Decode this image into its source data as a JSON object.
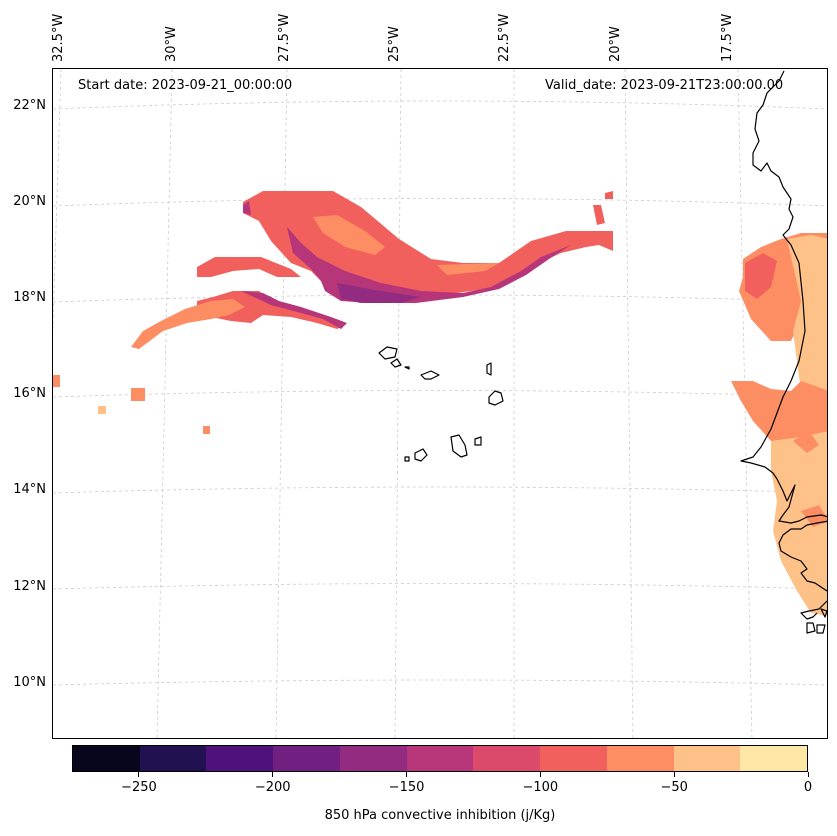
{
  "map": {
    "start_date": "Start date: 2023-09-21_00:00:00",
    "valid_date": "Valid_date: 2023-09-21T23:00:00.00",
    "lon_labels": [
      "32.5°W",
      "30°W",
      "27.5°W",
      "25°W",
      "22.5°W",
      "20°W",
      "17.5°W"
    ],
    "lat_labels": [
      "22°N",
      "20°N",
      "18°N",
      "16°N",
      "14°N",
      "12°N",
      "10°N"
    ],
    "field": "850 hPa convective inhibition",
    "region": "Cabo Verde and West African coast"
  },
  "colorbar": {
    "label": "850 hPa convective inhibition (j/Kg)",
    "tick_labels": [
      "−250",
      "−200",
      "−150",
      "−100",
      "−50",
      "0"
    ],
    "levels": [
      -275,
      -250,
      -225,
      -200,
      -175,
      -150,
      -125,
      -100,
      -75,
      -50,
      -25,
      0
    ],
    "colors": [
      "#07061d",
      "#221150",
      "#4f127b",
      "#711f81",
      "#932b80",
      "#b7367a",
      "#db4a6b",
      "#f1605d",
      "#fd8e64",
      "#fec288",
      "#fde7a7"
    ]
  },
  "colors": {
    "gridline": "#cccccc",
    "coastline": "#000000"
  }
}
